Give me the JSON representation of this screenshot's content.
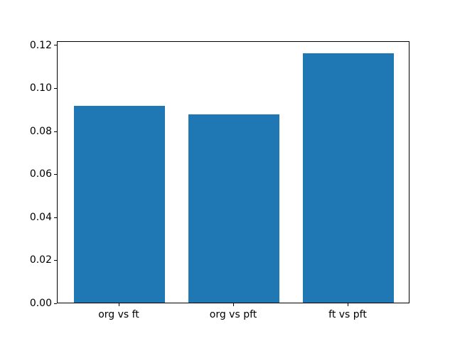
{
  "figure": {
    "background_color": "#ffffff",
    "spine_color": "#000000",
    "tick_text_color": "#000000"
  },
  "chart_data": {
    "type": "bar",
    "categories": [
      "org vs ft",
      "org vs pft",
      "ft vs pft"
    ],
    "values": [
      0.0915,
      0.0875,
      0.116
    ],
    "title": "",
    "xlabel": "",
    "ylabel": "",
    "ylim": [
      0,
      0.1218
    ],
    "yticks": [
      0.0,
      0.02,
      0.04,
      0.06,
      0.08,
      0.1,
      0.12
    ],
    "ytick_label_decimals": 2,
    "bar_color": "#1f77b4",
    "bar_width_fraction": 0.8,
    "grid": false,
    "legend": "none"
  }
}
